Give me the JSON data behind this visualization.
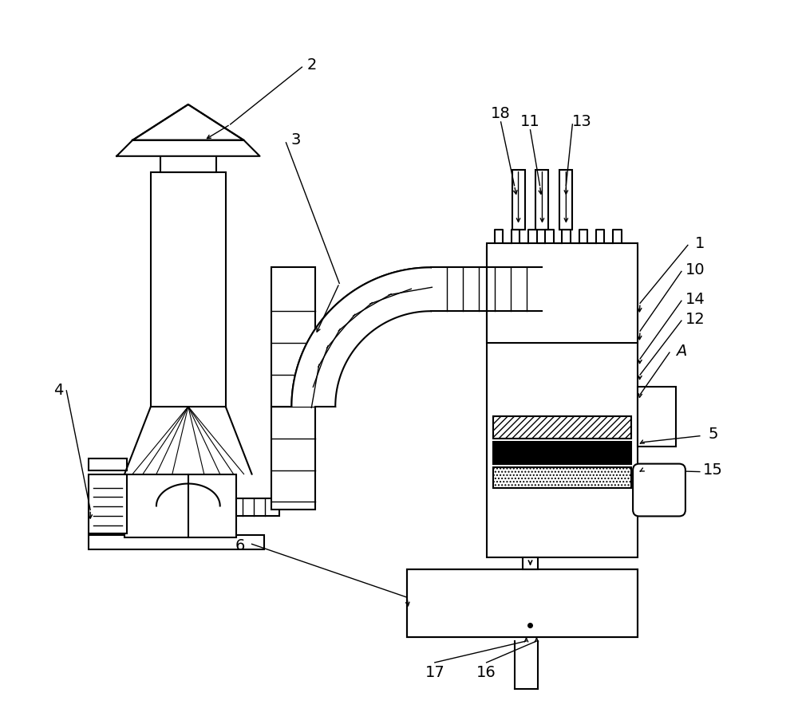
{
  "bg_color": "#ffffff",
  "line_color": "#000000",
  "lw": 1.5,
  "lw_thin": 1.0,
  "fig_width": 10.0,
  "fig_height": 9.13,
  "dpi": 100
}
